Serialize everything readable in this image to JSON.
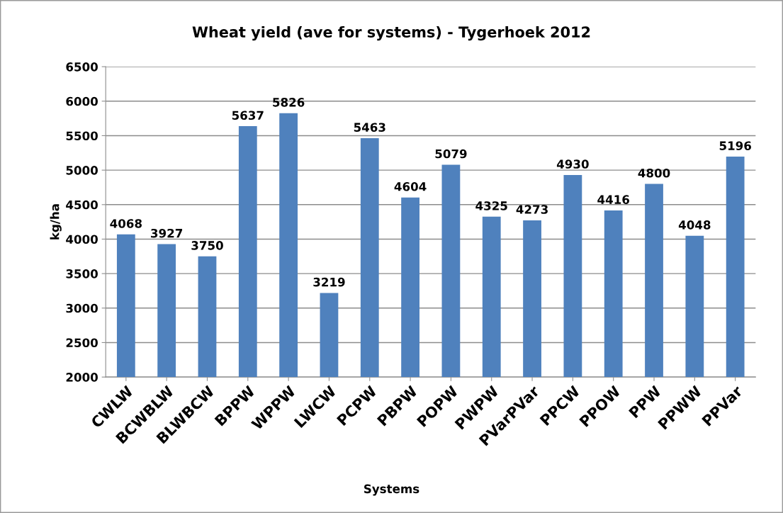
{
  "chart_data": {
    "type": "bar",
    "title": "Wheat yield (ave for systems) - Tygerhoek 2012",
    "xlabel": "Systems",
    "ylabel": "kg/ha",
    "categories": [
      "CWLW",
      "BCWBLW",
      "BLWBCW",
      "BPPW",
      "WPPW",
      "LWCW",
      "PCPW",
      "PBPW",
      "POPW",
      "PWPW",
      "PVarPVar",
      "PPCW",
      "PPOW",
      "PPW",
      "PPWW",
      "PPVar"
    ],
    "values": [
      4068,
      3927,
      3750,
      5637,
      5826,
      3219,
      5463,
      4604,
      5079,
      4325,
      4273,
      4930,
      4416,
      4800,
      4048,
      5196
    ],
    "color": "#4f81bd",
    "ylim": [
      2000,
      6500
    ],
    "yticks": [
      2000,
      2500,
      3000,
      3500,
      4000,
      4500,
      5000,
      5500,
      6000,
      6500
    ],
    "grid": "y",
    "data_labels": true
  }
}
